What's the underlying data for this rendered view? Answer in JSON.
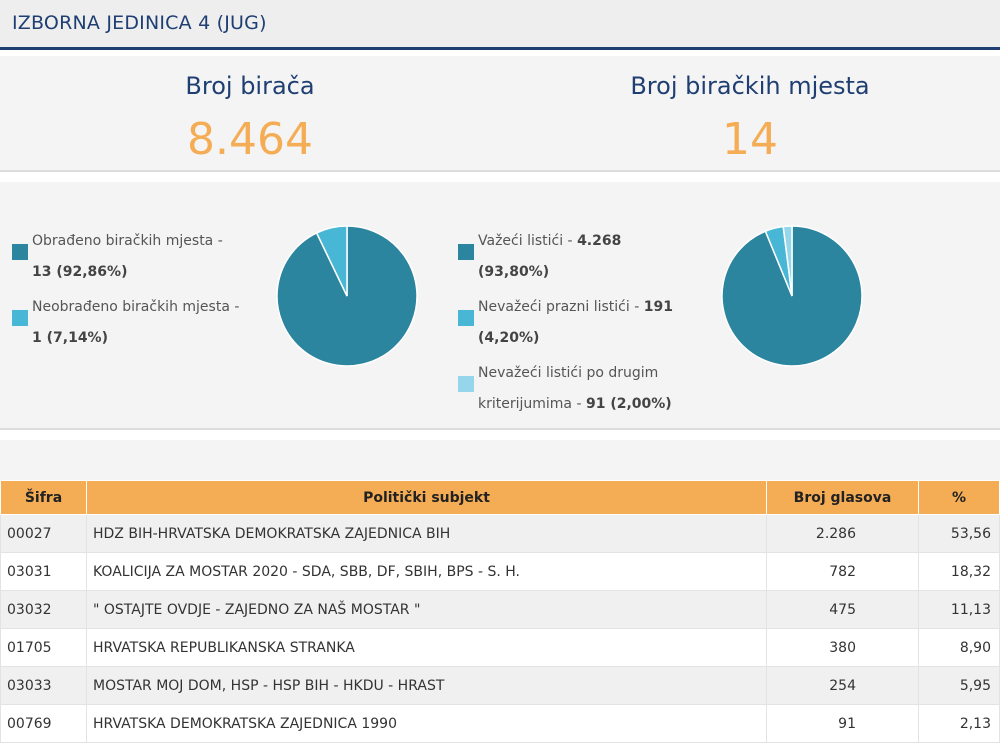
{
  "header": {
    "title": "IZBORNA JEDINICA 4 (JUG)"
  },
  "stats": {
    "voters_label": "Broj birača",
    "voters_value": "8.464",
    "stations_label": "Broj biračkih mjesta",
    "stations_value": "14"
  },
  "colors": {
    "title_blue": "#1f3f73",
    "accent_orange": "#f5ad55",
    "pie_main": "#2c859e",
    "pie_second": "#48b6d5",
    "pie_third": "#96d6ea"
  },
  "processing": {
    "legend": [
      {
        "text": "Obrađeno biračkih mjesta - ",
        "bold": "13 (92,86%)",
        "color": "#2c859e"
      },
      {
        "text": "Neobrađeno biračkih mjesta - ",
        "bold": "1 (7,14%)",
        "color": "#48b6d5"
      }
    ],
    "values": [
      92.86,
      7.14
    ]
  },
  "ballots": {
    "legend": [
      {
        "text": "Važeći listići - ",
        "bold": "4.268",
        "bold2": "(93,80%)",
        "color": "#2c859e"
      },
      {
        "text": "Nevažeći prazni listići - ",
        "bold": "191",
        "bold2": "(4,20%)",
        "color": "#48b6d5"
      },
      {
        "text": "Nevažeći listići po drugim",
        "text2": "kriterijumima - ",
        "bold2": "91 (2,00%)",
        "color": "#96d6ea"
      }
    ],
    "values": [
      93.8,
      4.2,
      2.0
    ]
  },
  "table": {
    "headers": [
      "Šifra",
      "Politički subjekt",
      "Broj glasova",
      "%"
    ],
    "rows": [
      {
        "code": "00027",
        "party": "HDZ BIH-HRVATSKA DEMOKRATSKA ZAJEDNICA BIH",
        "votes": "2.286",
        "pct": "53,56"
      },
      {
        "code": "03031",
        "party": "KOALICIJA ZA MOSTAR 2020 - SDA, SBB, DF, SBIH, BPS - S. H.",
        "votes": "782",
        "pct": "18,32"
      },
      {
        "code": "03032",
        "party": "\" OSTAJTE OVDJE - ZAJEDNO ZA NAŠ MOSTAR \"",
        "votes": "475",
        "pct": "11,13"
      },
      {
        "code": "01705",
        "party": "HRVATSKA REPUBLIKANSKA STRANKA",
        "votes": "380",
        "pct": "8,90"
      },
      {
        "code": "03033",
        "party": "MOSTAR MOJ DOM, HSP - HSP BIH - HKDU - HRAST",
        "votes": "254",
        "pct": "5,95"
      },
      {
        "code": "00769",
        "party": "HRVATSKA DEMOKRATSKA ZAJEDNICA 1990",
        "votes": "91",
        "pct": "2,13"
      }
    ]
  }
}
